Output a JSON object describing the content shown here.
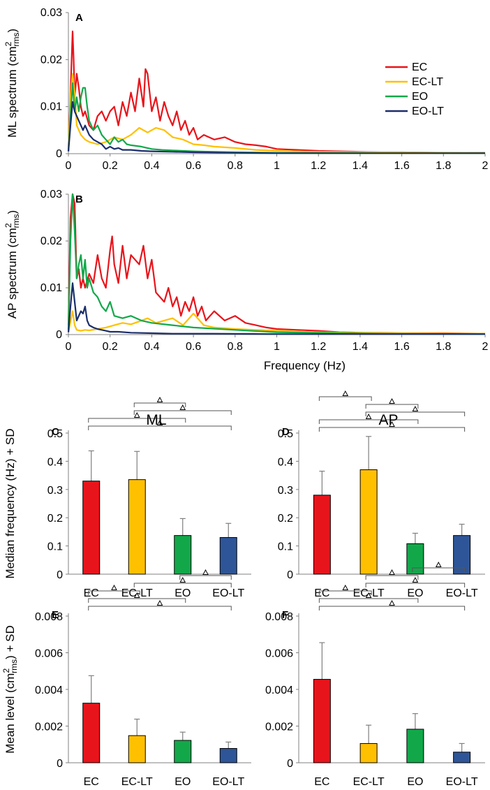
{
  "colors": {
    "EC": "#e8141b",
    "EC-LT": "#ffc000",
    "EO": "#12a84a",
    "EO-LT": "#1a2e6b",
    "bar_EO-LT": "#2e5597",
    "axis": "#808080",
    "err": "#7f7f7f"
  },
  "chart_data": [
    {
      "id": "A",
      "type": "line",
      "label": "A",
      "ylabel": "ML spectrum (cm",
      "ylabel_sup": "2",
      "ylabel_sub": "rms",
      "ylabel_end": ")",
      "xlim": [
        0,
        2
      ],
      "ylim": [
        0,
        0.03
      ],
      "yticks": [
        "0",
        "0.01",
        "0.02",
        "0.03"
      ],
      "xticks": [
        "0",
        "0.2",
        "0.4",
        "0.6",
        "0.8",
        "1",
        "1.2",
        "1.4",
        "1.6",
        "1.8",
        "2"
      ],
      "series": [
        {
          "name": "EC",
          "x": [
            0,
            0.01,
            0.02,
            0.025,
            0.03,
            0.04,
            0.05,
            0.06,
            0.07,
            0.08,
            0.1,
            0.12,
            0.14,
            0.16,
            0.18,
            0.2,
            0.22,
            0.24,
            0.26,
            0.28,
            0.3,
            0.32,
            0.34,
            0.36,
            0.37,
            0.38,
            0.4,
            0.42,
            0.44,
            0.46,
            0.48,
            0.5,
            0.52,
            0.54,
            0.56,
            0.58,
            0.6,
            0.62,
            0.65,
            0.7,
            0.75,
            0.8,
            0.85,
            0.9,
            0.95,
            1.0,
            1.1,
            1.2,
            1.3,
            1.4,
            1.5,
            1.6,
            1.8,
            2.0
          ],
          "y": [
            0.0005,
            0.013,
            0.026,
            0.02,
            0.012,
            0.017,
            0.014,
            0.01,
            0.008,
            0.009,
            0.006,
            0.005,
            0.008,
            0.009,
            0.007,
            0.009,
            0.01,
            0.006,
            0.011,
            0.008,
            0.013,
            0.009,
            0.016,
            0.01,
            0.018,
            0.017,
            0.009,
            0.012,
            0.007,
            0.011,
            0.008,
            0.006,
            0.009,
            0.005,
            0.007,
            0.004,
            0.0055,
            0.003,
            0.004,
            0.003,
            0.0035,
            0.0025,
            0.002,
            0.0018,
            0.0015,
            0.001,
            0.0008,
            0.0006,
            0.0005,
            0.0004,
            0.0003,
            0.0003,
            0.0002,
            0.0002
          ]
        },
        {
          "name": "EC-LT",
          "x": [
            0,
            0.01,
            0.02,
            0.03,
            0.04,
            0.06,
            0.08,
            0.1,
            0.14,
            0.18,
            0.22,
            0.26,
            0.3,
            0.34,
            0.38,
            0.42,
            0.46,
            0.5,
            0.55,
            0.6,
            0.65,
            0.7,
            0.8,
            0.9,
            1.0,
            1.2,
            1.5,
            2.0
          ],
          "y": [
            0.0005,
            0.012,
            0.017,
            0.013,
            0.006,
            0.004,
            0.003,
            0.0025,
            0.002,
            0.0025,
            0.0035,
            0.003,
            0.004,
            0.0055,
            0.0045,
            0.0055,
            0.005,
            0.0035,
            0.003,
            0.002,
            0.0018,
            0.0015,
            0.0012,
            0.0008,
            0.0006,
            0.0004,
            0.0003,
            0.0002
          ]
        },
        {
          "name": "EO",
          "x": [
            0,
            0.01,
            0.02,
            0.03,
            0.04,
            0.05,
            0.06,
            0.07,
            0.08,
            0.09,
            0.1,
            0.12,
            0.14,
            0.16,
            0.18,
            0.2,
            0.22,
            0.24,
            0.26,
            0.28,
            0.3,
            0.35,
            0.4,
            0.45,
            0.5,
            0.6,
            0.7,
            0.8,
            1.0,
            1.5,
            2.0
          ],
          "y": [
            0.0005,
            0.008,
            0.015,
            0.009,
            0.012,
            0.009,
            0.012,
            0.014,
            0.014,
            0.01,
            0.007,
            0.005,
            0.006,
            0.004,
            0.003,
            0.002,
            0.0035,
            0.0025,
            0.003,
            0.002,
            0.0018,
            0.0015,
            0.001,
            0.0008,
            0.0007,
            0.0005,
            0.0004,
            0.0003,
            0.0002,
            0.0001,
            0.0001
          ]
        },
        {
          "name": "EO-LT",
          "x": [
            0,
            0.01,
            0.02,
            0.03,
            0.04,
            0.05,
            0.06,
            0.07,
            0.08,
            0.1,
            0.12,
            0.14,
            0.16,
            0.18,
            0.2,
            0.22,
            0.24,
            0.26,
            0.3,
            0.35,
            0.4,
            0.5,
            0.6,
            0.8,
            1.0,
            1.5,
            2.0
          ],
          "y": [
            0.0005,
            0.006,
            0.011,
            0.009,
            0.008,
            0.007,
            0.006,
            0.005,
            0.006,
            0.004,
            0.003,
            0.0025,
            0.002,
            0.001,
            0.0015,
            0.001,
            0.0012,
            0.0008,
            0.0008,
            0.0006,
            0.0005,
            0.0004,
            0.0003,
            0.0002,
            0.0001,
            0.0001,
            0.0001
          ]
        }
      ],
      "legend": [
        "EC",
        "EC-LT",
        "EO",
        "EO-LT"
      ]
    },
    {
      "id": "B",
      "type": "line",
      "label": "B",
      "ylabel": "AP spectrum (cm",
      "ylabel_sup": "2",
      "ylabel_sub": "rms",
      "ylabel_end": ")",
      "xlabel": "Frequency (Hz)",
      "xlim": [
        0,
        2
      ],
      "ylim": [
        0,
        0.03
      ],
      "yticks": [
        "0",
        "0.01",
        "0.02",
        "0.03"
      ],
      "xticks": [
        "0",
        "0.2",
        "0.4",
        "0.6",
        "0.8",
        "1",
        "1.2",
        "1.4",
        "1.6",
        "1.8",
        "2"
      ],
      "series": [
        {
          "name": "EC",
          "x": [
            0,
            0.01,
            0.02,
            0.03,
            0.04,
            0.05,
            0.06,
            0.07,
            0.08,
            0.1,
            0.12,
            0.14,
            0.16,
            0.18,
            0.2,
            0.21,
            0.22,
            0.24,
            0.26,
            0.28,
            0.3,
            0.32,
            0.34,
            0.36,
            0.38,
            0.4,
            0.42,
            0.44,
            0.46,
            0.48,
            0.5,
            0.52,
            0.54,
            0.56,
            0.58,
            0.6,
            0.62,
            0.64,
            0.66,
            0.7,
            0.75,
            0.8,
            0.85,
            0.9,
            0.95,
            1.0,
            1.1,
            1.2,
            1.3,
            1.4,
            1.6,
            1.8,
            2.0
          ],
          "y": [
            0.002,
            0.025,
            0.03,
            0.028,
            0.012,
            0.014,
            0.01,
            0.012,
            0.01,
            0.013,
            0.011,
            0.017,
            0.012,
            0.01,
            0.018,
            0.021,
            0.015,
            0.011,
            0.019,
            0.012,
            0.017,
            0.016,
            0.015,
            0.019,
            0.012,
            0.016,
            0.009,
            0.008,
            0.007,
            0.01,
            0.006,
            0.008,
            0.004,
            0.007,
            0.005,
            0.008,
            0.004,
            0.006,
            0.003,
            0.005,
            0.003,
            0.004,
            0.0025,
            0.002,
            0.0015,
            0.0012,
            0.001,
            0.0008,
            0.0005,
            0.0004,
            0.0003,
            0.0003,
            0.0002
          ]
        },
        {
          "name": "EC-LT",
          "x": [
            0,
            0.02,
            0.03,
            0.04,
            0.06,
            0.08,
            0.1,
            0.14,
            0.18,
            0.22,
            0.26,
            0.3,
            0.34,
            0.38,
            0.42,
            0.46,
            0.5,
            0.55,
            0.6,
            0.65,
            0.7,
            0.8,
            0.9,
            1.0,
            1.2,
            1.5,
            2.0
          ],
          "y": [
            0.0005,
            0.005,
            0.002,
            0.001,
            0.0008,
            0.001,
            0.0009,
            0.0012,
            0.0015,
            0.002,
            0.0025,
            0.0022,
            0.0028,
            0.0035,
            0.0025,
            0.003,
            0.0035,
            0.002,
            0.0045,
            0.002,
            0.0015,
            0.0012,
            0.001,
            0.0008,
            0.0005,
            0.0003,
            0.0002
          ]
        },
        {
          "name": "EO",
          "x": [
            0,
            0.01,
            0.02,
            0.03,
            0.04,
            0.05,
            0.06,
            0.07,
            0.08,
            0.09,
            0.1,
            0.12,
            0.14,
            0.16,
            0.18,
            0.2,
            0.22,
            0.26,
            0.3,
            0.35,
            0.4,
            0.5,
            0.6,
            0.8,
            1.0,
            1.5,
            2.0
          ],
          "y": [
            0.001,
            0.02,
            0.03,
            0.022,
            0.012,
            0.015,
            0.017,
            0.012,
            0.016,
            0.01,
            0.012,
            0.009,
            0.008,
            0.006,
            0.005,
            0.007,
            0.004,
            0.0035,
            0.004,
            0.003,
            0.0025,
            0.002,
            0.0015,
            0.001,
            0.0005,
            0.0002,
            0.0001
          ]
        },
        {
          "name": "EO-LT",
          "x": [
            0,
            0.01,
            0.02,
            0.03,
            0.04,
            0.05,
            0.06,
            0.07,
            0.08,
            0.09,
            0.1,
            0.12,
            0.14,
            0.16,
            0.18,
            0.2,
            0.24,
            0.3,
            0.4,
            0.5,
            0.7,
            1.0,
            1.5,
            2.0
          ],
          "y": [
            0.0005,
            0.006,
            0.011,
            0.007,
            0.003,
            0.004,
            0.005,
            0.0045,
            0.006,
            0.003,
            0.002,
            0.0015,
            0.0012,
            0.001,
            0.0008,
            0.0006,
            0.0006,
            0.0004,
            0.0003,
            0.0002,
            0.0002,
            0.0001,
            0.0001,
            0.0001
          ]
        }
      ]
    },
    {
      "id": "C",
      "type": "bar",
      "label": "C",
      "title": "ML",
      "ylabel": "Median frequency (Hz) + SD",
      "categories": [
        "EC",
        "EC-LT",
        "EO",
        "EO-LT"
      ],
      "values": [
        0.33,
        0.335,
        0.137,
        0.13
      ],
      "errors": [
        0.107,
        0.1,
        0.06,
        0.05
      ],
      "ylim": [
        0,
        0.5
      ],
      "yticks": [
        "0",
        "0.1",
        "0.2",
        "0.3",
        "0.4",
        "0.5"
      ],
      "comparisons": [
        [
          0,
          3
        ],
        [
          0,
          2
        ],
        [
          1,
          3
        ],
        [
          1,
          2
        ]
      ]
    },
    {
      "id": "D",
      "type": "bar",
      "label": "D",
      "title": "AP",
      "categories": [
        "EC",
        "EC-LT",
        "EO",
        "EO-LT"
      ],
      "values": [
        0.28,
        0.37,
        0.108,
        0.137
      ],
      "errors": [
        0.085,
        0.118,
        0.037,
        0.04
      ],
      "ylim": [
        0,
        0.5
      ],
      "yticks": [
        "0",
        "0.1",
        "0.2",
        "0.3",
        "0.4",
        "0.5"
      ],
      "comparisons": [
        [
          0,
          3
        ],
        [
          0,
          2
        ],
        [
          1,
          3
        ],
        [
          1,
          2
        ],
        [
          0,
          1
        ]
      ]
    },
    {
      "id": "E",
      "type": "bar",
      "label": "E",
      "ylabel": "Mean level  (cm",
      "ylabel_sup": "2",
      "ylabel_sub": "rms",
      "ylabel_end": ") + SD",
      "categories": [
        "EC",
        "EC-LT",
        "EO",
        "EO-LT"
      ],
      "values": [
        0.00325,
        0.00148,
        0.00122,
        0.00078
      ],
      "errors": [
        0.0015,
        0.0009,
        0.00045,
        0.00035
      ],
      "ylim": [
        0,
        0.008
      ],
      "yticks": [
        "0",
        "0.002",
        "0.004",
        "0.006",
        "0.008"
      ],
      "comparisons": [
        [
          0,
          3
        ],
        [
          0,
          2
        ],
        [
          0,
          1
        ],
        [
          1,
          3
        ],
        [
          2,
          3
        ]
      ]
    },
    {
      "id": "F",
      "type": "bar",
      "label": "F",
      "categories": [
        "EC",
        "EC-LT",
        "EO",
        "EO-LT"
      ],
      "values": [
        0.00455,
        0.00105,
        0.00183,
        0.00058
      ],
      "errors": [
        0.002,
        0.001,
        0.00085,
        0.00047
      ],
      "ylim": [
        0,
        0.008
      ],
      "yticks": [
        "0",
        "0.002",
        "0.004",
        "0.006",
        "0.008"
      ],
      "comparisons": [
        [
          0,
          3
        ],
        [
          0,
          2
        ],
        [
          0,
          1
        ],
        [
          1,
          3
        ],
        [
          1,
          2
        ],
        [
          2,
          3
        ]
      ]
    }
  ]
}
